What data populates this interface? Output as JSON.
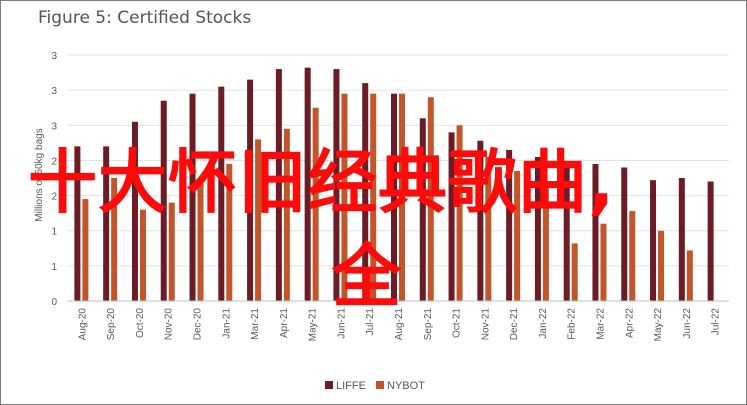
{
  "chart_data": {
    "type": "bar",
    "title": "Figure 5: Certified Stocks",
    "ylabel": "Millions of 60kg bags",
    "ylim": [
      0,
      3.6
    ],
    "y_ticks": [
      0,
      0.5,
      1,
      1.5,
      2,
      2.5,
      3,
      3.5
    ],
    "y_tick_labels": [
      "0",
      "1",
      "1",
      "2",
      "2",
      "3",
      "3",
      "3"
    ],
    "grid": true,
    "legend": "bottom",
    "categories": [
      "Aug-20",
      "Sep-20",
      "Oct-20",
      "Nov-20",
      "Dec-20",
      "Jan-21",
      "Mar-21",
      "Apr-21",
      "May-21",
      "Jun-21",
      "Jul-21",
      "Aug-21",
      "Sep-21",
      "Oct-21",
      "Nov-21",
      "Dec-21",
      "Jan-22",
      "Feb-22",
      "Mar-22",
      "Apr-22",
      "May-22",
      "Jun-22",
      "Jul-22"
    ],
    "series": [
      {
        "name": "LIFFE",
        "color": "#6b1c24",
        "values": [
          2.2,
          2.2,
          2.55,
          2.85,
          2.95,
          3.05,
          3.15,
          3.3,
          3.32,
          3.3,
          3.1,
          2.95,
          2.6,
          2.4,
          2.28,
          2.15,
          2.05,
          1.98,
          1.95,
          1.9,
          1.72,
          1.75,
          1.7
        ]
      },
      {
        "name": "NYBOT",
        "color": "#c2562b",
        "values": [
          1.45,
          1.75,
          1.3,
          1.4,
          1.75,
          1.95,
          2.3,
          2.45,
          2.75,
          2.95,
          2.95,
          2.95,
          2.9,
          2.5,
          2.05,
          1.85,
          1.7,
          0.82,
          1.1,
          1.28,
          1.0,
          0.72,
          null
        ]
      }
    ]
  },
  "overlay": {
    "line1": "十大怀旧经典歌曲,",
    "line2": "全"
  }
}
